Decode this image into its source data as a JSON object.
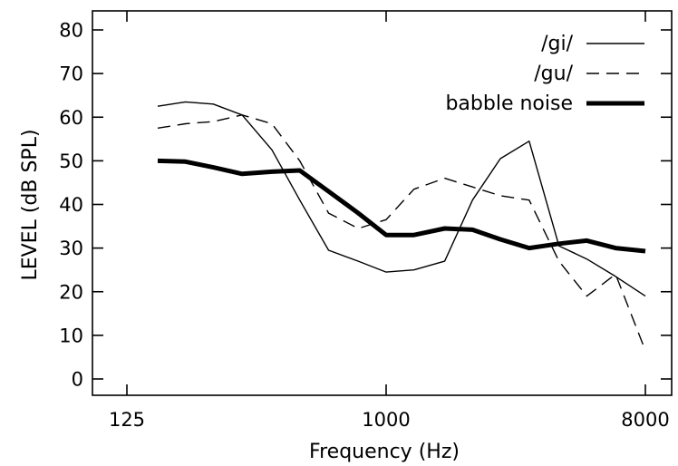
{
  "chart_data": {
    "type": "line",
    "xlabel": "Frequency (Hz)",
    "ylabel": "LEVEL (dB SPL)",
    "x_scale": "log2",
    "xlim": [
      125,
      8000
    ],
    "ylim": [
      -3,
      85
    ],
    "x_ticks": [
      125,
      1000,
      8000
    ],
    "x_tick_labels": [
      "125",
      "1000",
      "8000"
    ],
    "y_ticks": [
      0,
      10,
      20,
      30,
      40,
      50,
      60,
      70,
      80
    ],
    "y_tick_labels": [
      "0",
      "10",
      "20",
      "30",
      "40",
      "50",
      "60",
      "70",
      "80"
    ],
    "grid": false,
    "legend_position": "top-right",
    "series": [
      {
        "name": "/gi/",
        "style": "thin-solid",
        "color": "#000000",
        "x": [
          160,
          200,
          250,
          315,
          400,
          500,
          630,
          800,
          1000,
          1250,
          1600,
          2000,
          2500,
          3150,
          4000,
          5000,
          6300,
          8000
        ],
        "y": [
          62.5,
          63.5,
          63,
          60.5,
          52.5,
          41,
          29.5,
          27,
          24.5,
          25,
          27,
          41,
          50.5,
          54.5,
          30.5,
          27.5,
          23.5,
          19
        ]
      },
      {
        "name": "/gu/",
        "style": "dashed",
        "color": "#000000",
        "x": [
          160,
          200,
          250,
          315,
          400,
          500,
          630,
          800,
          1000,
          1250,
          1600,
          2000,
          2500,
          3150,
          4000,
          5000,
          6300,
          8000
        ],
        "y": [
          57.5,
          58.5,
          59,
          60.5,
          58.5,
          50,
          38,
          34.5,
          36.5,
          43.5,
          46,
          44,
          42,
          41,
          27,
          19,
          24,
          6.5
        ]
      },
      {
        "name": "babble noise",
        "style": "thick-solid",
        "color": "#000000",
        "x": [
          160,
          200,
          250,
          315,
          400,
          500,
          630,
          800,
          1000,
          1250,
          1600,
          2000,
          2500,
          3150,
          4000,
          5000,
          6300,
          8000
        ],
        "y": [
          50,
          49.8,
          48.5,
          47,
          47.5,
          47.8,
          43,
          38,
          33,
          33,
          34.5,
          34.2,
          32,
          30,
          31,
          31.7,
          30,
          29.3
        ]
      }
    ]
  }
}
